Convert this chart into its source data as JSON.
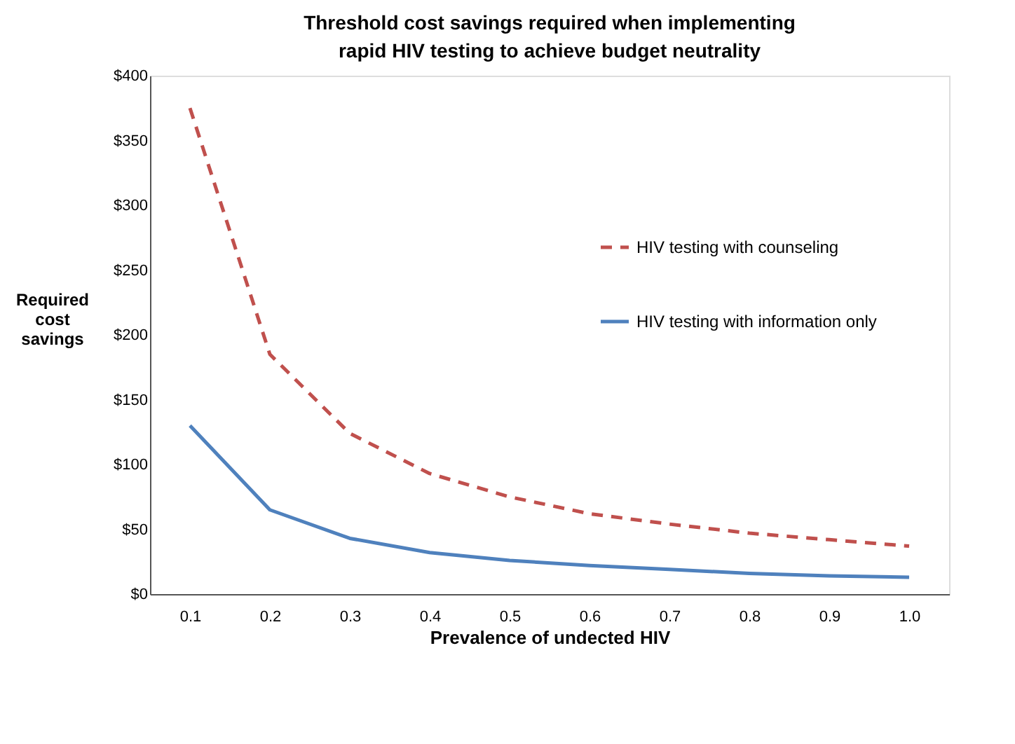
{
  "chart_data": {
    "type": "line",
    "title": "Threshold cost savings required when implementing rapid HIV testing to achieve budget neutrality",
    "xlabel": "Prevalence of undected HIV",
    "ylabel": "Required cost savings",
    "categories": [
      "0.1",
      "0.2",
      "0.3",
      "0.4",
      "0.5",
      "0.6",
      "0.7",
      "0.8",
      "0.9",
      "1.0"
    ],
    "series": [
      {
        "name": "HIV testing with counseling",
        "color": "#c0504d",
        "line_style": "dashed",
        "values": [
          375,
          185,
          124,
          93,
          75,
          62,
          54,
          47,
          42,
          37
        ]
      },
      {
        "name": "HIV testing with information only",
        "color": "#4f81bd",
        "line_style": "solid",
        "values": [
          130,
          65,
          43,
          32,
          26,
          22,
          19,
          16,
          14,
          13
        ]
      }
    ],
    "ylim": [
      0,
      400
    ],
    "yticks": [
      {
        "value": 0,
        "label": "$0"
      },
      {
        "value": 50,
        "label": "$50"
      },
      {
        "value": 100,
        "label": "$100"
      },
      {
        "value": 150,
        "label": "$150"
      },
      {
        "value": 200,
        "label": "$200"
      },
      {
        "value": 250,
        "label": "$250"
      },
      {
        "value": 300,
        "label": "$300"
      },
      {
        "value": 350,
        "label": "$350"
      },
      {
        "value": 400,
        "label": "$400"
      }
    ],
    "grid": false,
    "legend": "right",
    "marker": "none"
  }
}
